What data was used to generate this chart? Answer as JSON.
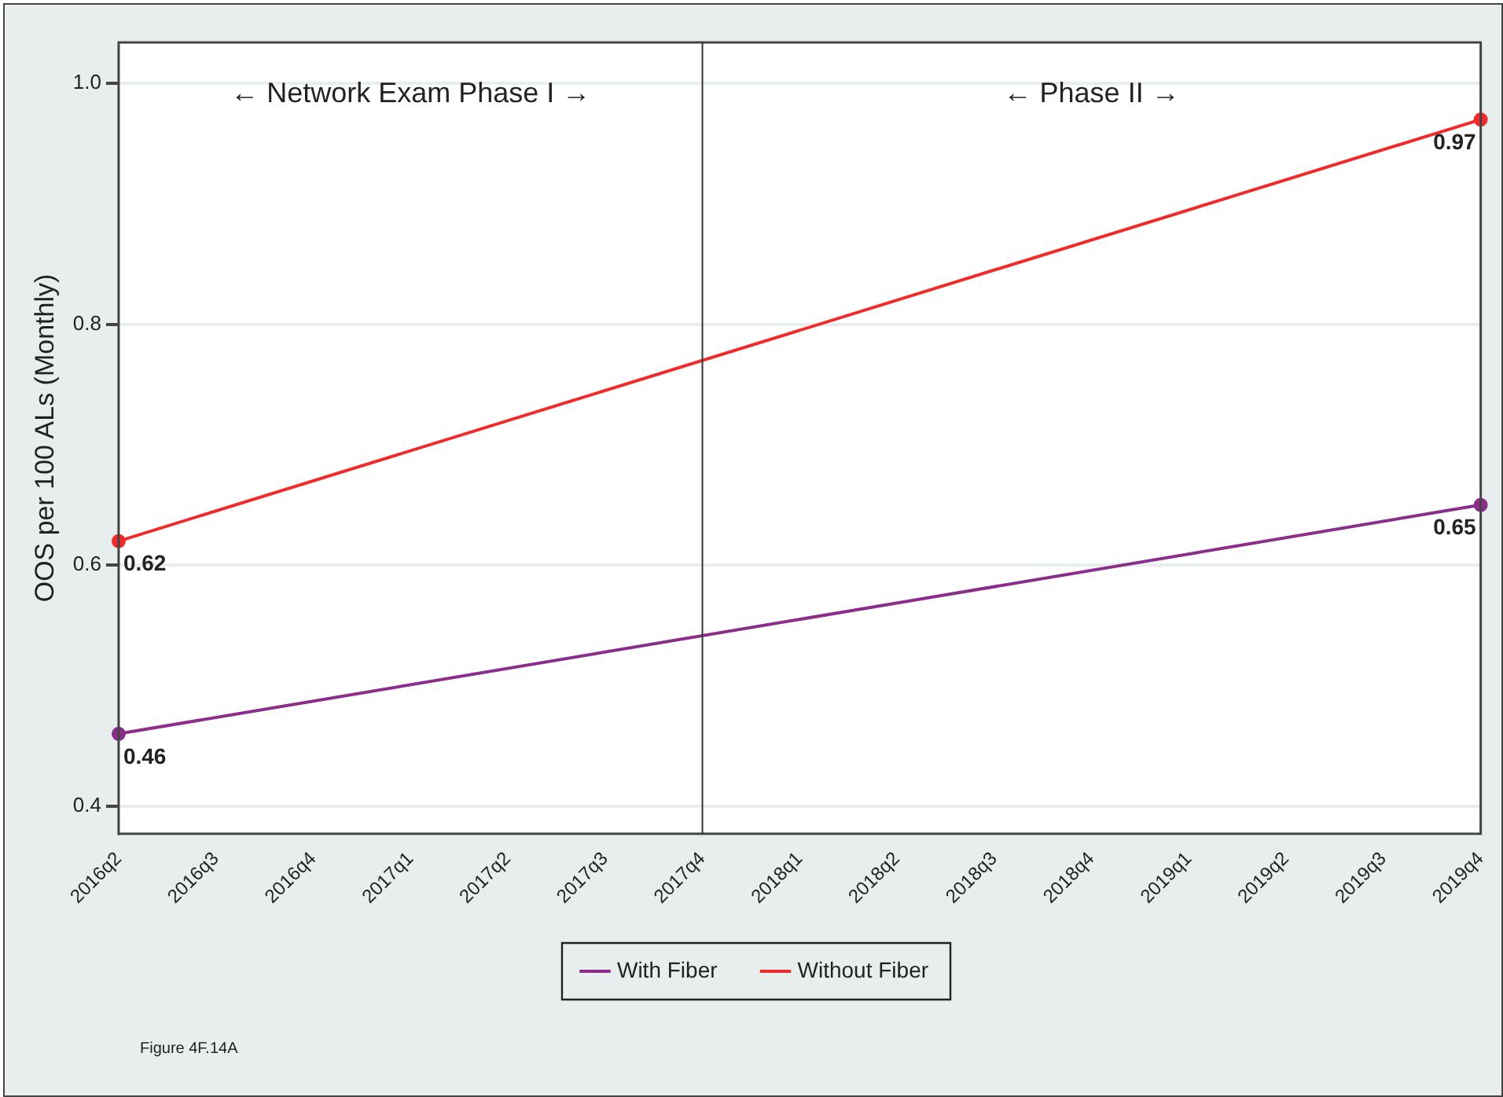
{
  "chart_data": {
    "type": "line",
    "ylabel": "OOS per 100 ALs (Monthly)",
    "categories": [
      "2016q2",
      "2016q3",
      "2016q4",
      "2017q1",
      "2017q2",
      "2017q3",
      "2017q4",
      "2018q1",
      "2018q2",
      "2018q3",
      "2018q4",
      "2019q1",
      "2019q2",
      "2019q3",
      "2019q4"
    ],
    "series": [
      {
        "name": "With Fiber",
        "color": "#8b2d8b",
        "values": [
          0.46,
          null,
          null,
          null,
          null,
          null,
          null,
          null,
          null,
          null,
          null,
          null,
          null,
          null,
          0.65
        ]
      },
      {
        "name": "Without Fiber",
        "color": "#ee2c2c",
        "values": [
          0.62,
          null,
          null,
          null,
          null,
          null,
          null,
          null,
          null,
          null,
          null,
          null,
          null,
          null,
          0.97
        ]
      }
    ],
    "ylim": [
      0.377,
      1.034
    ],
    "yticks": [
      0.4,
      0.6,
      0.8,
      {
        "value": 1,
        "label": "1.0"
      }
    ],
    "grid": "y",
    "legend": "bottom",
    "marker": "circle",
    "line_style": "solid",
    "data_labels": true,
    "ref_lines": [
      {
        "axis": "x",
        "value": "2017q4",
        "color": "#333333"
      }
    ],
    "annotations": [
      "← Network Exam Phase I →",
      "← Phase II →",
      "Figure 4F.14A"
    ]
  }
}
